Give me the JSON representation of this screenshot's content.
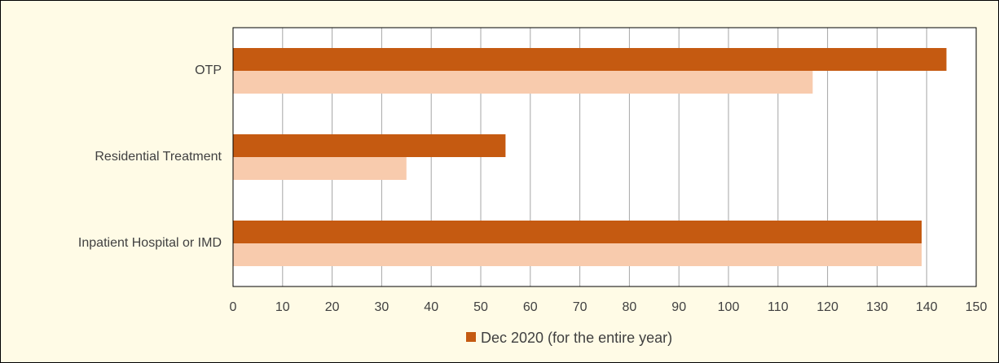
{
  "chart_data": {
    "type": "bar",
    "orientation": "horizontal",
    "title": "",
    "xlabel": "",
    "ylabel": "",
    "categories": [
      "OTP",
      "Residential Treatment",
      "Inpatient Hospital or IMD"
    ],
    "series": [
      {
        "name": "Dec 2020 (for the entire year)",
        "values": [
          144,
          55,
          139
        ],
        "color": "#c55a11"
      },
      {
        "values": [
          117,
          35,
          139
        ],
        "color": "#f8cbad"
      }
    ],
    "xlim": [
      0,
      150
    ],
    "xticks": [
      "0",
      "10",
      "20",
      "30",
      "40",
      "50",
      "60",
      "70",
      "80",
      "90",
      "100",
      "110",
      "120",
      "130",
      "140",
      "150"
    ],
    "grid": "vertical",
    "legend": "bottom",
    "background": "#fffbe6",
    "plot_background": "#ffffff"
  },
  "legend": {
    "label": "Dec 2020 (for the entire year)",
    "color": "#c55a11"
  }
}
